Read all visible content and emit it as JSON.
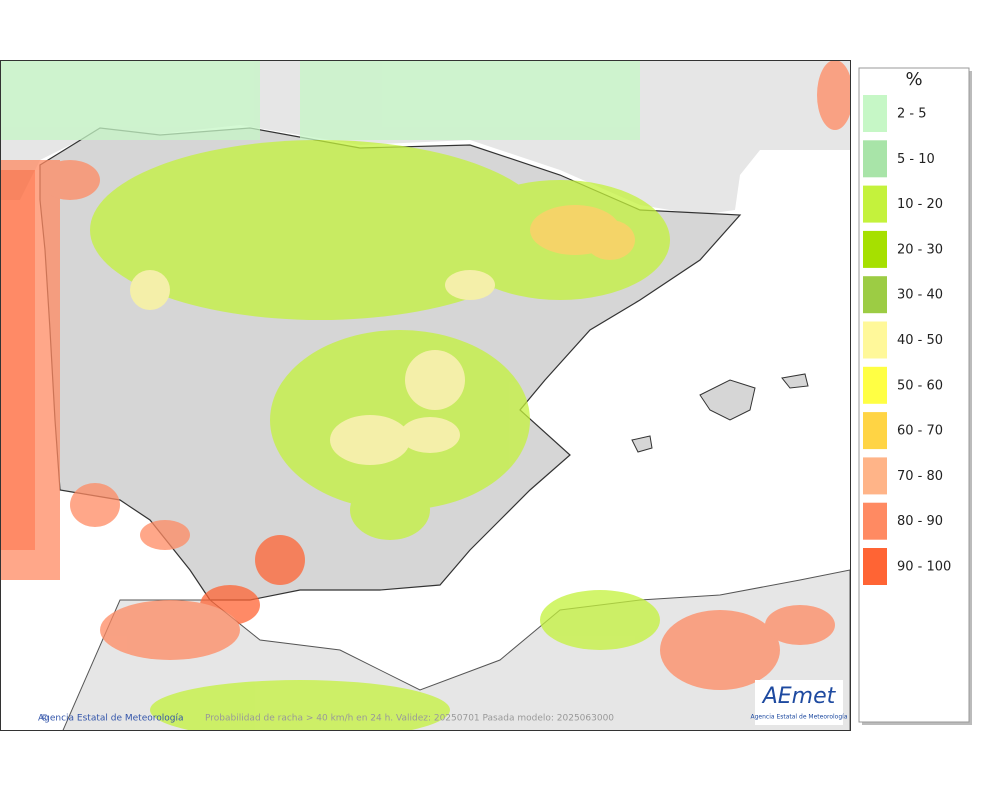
{
  "map": {
    "caption": "Probabilidad de racha > 40 km/h en 24 h. Validez: 20250701 Pasada modelo: 2025063000",
    "credit": "Agencia Estatal de Meteorología",
    "logo": {
      "name": "AEmet",
      "subtitle": "Agencia Estatal de Meteorología"
    }
  },
  "legend": {
    "title": "%",
    "entries": [
      {
        "label": "2 - 5",
        "color": "#c6f7c6"
      },
      {
        "label": "5 - 10",
        "color": "#a8e4a8"
      },
      {
        "label": "10 - 20",
        "color": "#c4f23c"
      },
      {
        "label": "20 - 30",
        "color": "#a6e000"
      },
      {
        "label": "30 - 40",
        "color": "#9ccc44"
      },
      {
        "label": "40 - 50",
        "color": "#fff89a"
      },
      {
        "label": "50 - 60",
        "color": "#ffff44"
      },
      {
        "label": "60 - 70",
        "color": "#ffd444"
      },
      {
        "label": "70 - 80",
        "color": "#ffb488"
      },
      {
        "label": "80 - 90",
        "color": "#ff8a62"
      },
      {
        "label": "90 - 100",
        "color": "#ff6434"
      }
    ]
  }
}
